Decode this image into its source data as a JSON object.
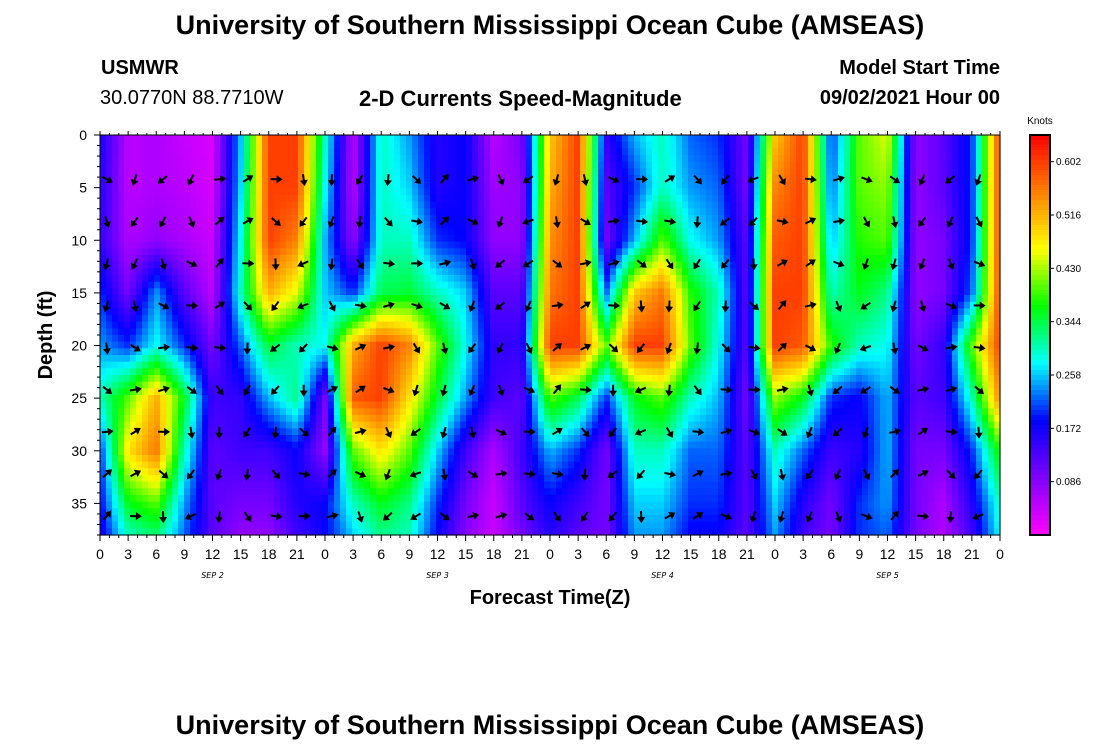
{
  "header": {
    "title_top": "University of Southern Mississippi Ocean Cube (AMSEAS)",
    "title_bottom": "University of Southern Mississippi Ocean Cube (AMSEAS)",
    "station": "USMWR",
    "coords": "30.0770N  88.7710W",
    "subtitle": "2-D Currents Speed-Magnitude",
    "model_start_label": "Model Start Time",
    "model_start_value": "09/02/2021 Hour 00"
  },
  "chart_data": {
    "type": "heatmap",
    "title": "2-D Currents Speed-Magnitude",
    "xlabel": "Forecast Time(Z)",
    "ylabel": "Depth (ft)",
    "x_range_hours": [
      0,
      96
    ],
    "y_range_ft": [
      0,
      38
    ],
    "x_tick_labels": [
      "0",
      "3",
      "6",
      "9",
      "12",
      "15",
      "18",
      "21",
      "0",
      "3",
      "6",
      "9",
      "12",
      "15",
      "18",
      "21",
      "0",
      "3",
      "6",
      "9",
      "12",
      "15",
      "18",
      "21",
      "0",
      "3",
      "6",
      "9",
      "12",
      "15",
      "18",
      "21",
      "0"
    ],
    "y_ticks": [
      0,
      5,
      10,
      15,
      20,
      25,
      30,
      35
    ],
    "day_labels": [
      {
        "label": "SEP 2",
        "hour": 12
      },
      {
        "label": "SEP 3",
        "hour": 36
      },
      {
        "label": "SEP 4",
        "hour": 60
      },
      {
        "label": "SEP 5",
        "hour": 84
      }
    ],
    "colorbar": {
      "unit": "Knots",
      "tick_values": [
        0.602,
        0.516,
        0.43,
        0.344,
        0.258,
        0.172,
        0.086
      ],
      "tick_labels": [
        "0.602",
        "0.516",
        "0.430",
        "0.344",
        "0.258",
        "0.172",
        "0.086"
      ],
      "range": [
        0.0,
        0.645
      ],
      "colors": [
        "#ff00ff",
        "#8000ff",
        "#0000ff",
        "#00ffff",
        "#00ff00",
        "#ffff00",
        "#ff8000",
        "#ff0000"
      ]
    },
    "speed_field_knots": {
      "hours": [
        0,
        3,
        6,
        9,
        12,
        15,
        18,
        21,
        24,
        27,
        30,
        33,
        36,
        39,
        42,
        45,
        48,
        51,
        54,
        57,
        60,
        63,
        66,
        69,
        72,
        75,
        78,
        81,
        84,
        87,
        90,
        93,
        96
      ],
      "depths_ft": [
        0,
        5,
        10,
        15,
        20,
        25,
        30,
        35,
        38
      ],
      "values": [
        [
          0.17,
          0.05,
          0.06,
          0.04,
          0.03,
          0.25,
          0.6,
          0.6,
          0.3,
          0.05,
          0.3,
          0.24,
          0.16,
          0.18,
          0.05,
          0.1,
          0.5,
          0.6,
          0.15,
          0.25,
          0.3,
          0.22,
          0.2,
          0.1,
          0.5,
          0.6,
          0.2,
          0.4,
          0.45,
          0.08,
          0.12,
          0.2,
          0.6
        ],
        [
          0.16,
          0.05,
          0.06,
          0.05,
          0.03,
          0.26,
          0.6,
          0.6,
          0.28,
          0.05,
          0.3,
          0.26,
          0.16,
          0.18,
          0.07,
          0.08,
          0.52,
          0.6,
          0.12,
          0.2,
          0.3,
          0.24,
          0.22,
          0.1,
          0.55,
          0.6,
          0.22,
          0.4,
          0.42,
          0.08,
          0.12,
          0.2,
          0.6
        ],
        [
          0.15,
          0.06,
          0.08,
          0.06,
          0.04,
          0.28,
          0.6,
          0.55,
          0.25,
          0.08,
          0.3,
          0.3,
          0.2,
          0.18,
          0.08,
          0.08,
          0.54,
          0.6,
          0.1,
          0.25,
          0.4,
          0.28,
          0.24,
          0.12,
          0.58,
          0.6,
          0.25,
          0.38,
          0.4,
          0.08,
          0.1,
          0.2,
          0.6
        ],
        [
          0.2,
          0.1,
          0.24,
          0.12,
          0.05,
          0.3,
          0.52,
          0.45,
          0.26,
          0.2,
          0.34,
          0.35,
          0.3,
          0.26,
          0.12,
          0.12,
          0.56,
          0.6,
          0.22,
          0.5,
          0.56,
          0.38,
          0.3,
          0.12,
          0.6,
          0.6,
          0.3,
          0.36,
          0.32,
          0.08,
          0.1,
          0.22,
          0.6
        ],
        [
          0.24,
          0.2,
          0.28,
          0.2,
          0.1,
          0.22,
          0.35,
          0.3,
          0.28,
          0.52,
          0.6,
          0.55,
          0.4,
          0.28,
          0.15,
          0.15,
          0.6,
          0.6,
          0.4,
          0.6,
          0.6,
          0.4,
          0.28,
          0.12,
          0.6,
          0.58,
          0.38,
          0.3,
          0.28,
          0.1,
          0.15,
          0.4,
          0.6
        ],
        [
          0.3,
          0.4,
          0.52,
          0.36,
          0.14,
          0.15,
          0.25,
          0.32,
          0.1,
          0.58,
          0.6,
          0.48,
          0.35,
          0.24,
          0.14,
          0.12,
          0.4,
          0.34,
          0.2,
          0.36,
          0.4,
          0.3,
          0.25,
          0.1,
          0.42,
          0.36,
          0.2,
          0.18,
          0.25,
          0.12,
          0.14,
          0.3,
          0.55
        ],
        [
          0.2,
          0.48,
          0.56,
          0.3,
          0.12,
          0.14,
          0.14,
          0.18,
          0.08,
          0.4,
          0.48,
          0.4,
          0.26,
          0.14,
          0.06,
          0.14,
          0.25,
          0.2,
          0.1,
          0.3,
          0.3,
          0.22,
          0.22,
          0.12,
          0.3,
          0.22,
          0.14,
          0.16,
          0.25,
          0.1,
          0.1,
          0.2,
          0.38
        ],
        [
          0.18,
          0.36,
          0.4,
          0.24,
          0.12,
          0.1,
          0.1,
          0.16,
          0.18,
          0.3,
          0.36,
          0.32,
          0.2,
          0.1,
          0.04,
          0.12,
          0.18,
          0.14,
          0.1,
          0.26,
          0.26,
          0.2,
          0.2,
          0.12,
          0.26,
          0.16,
          0.1,
          0.2,
          0.24,
          0.1,
          0.06,
          0.16,
          0.3
        ],
        [
          0.16,
          0.3,
          0.33,
          0.22,
          0.12,
          0.08,
          0.08,
          0.14,
          0.18,
          0.26,
          0.32,
          0.3,
          0.18,
          0.09,
          0.04,
          0.1,
          0.16,
          0.12,
          0.1,
          0.24,
          0.24,
          0.18,
          0.18,
          0.12,
          0.24,
          0.14,
          0.1,
          0.2,
          0.22,
          0.1,
          0.06,
          0.14,
          0.28
        ]
      ]
    }
  }
}
